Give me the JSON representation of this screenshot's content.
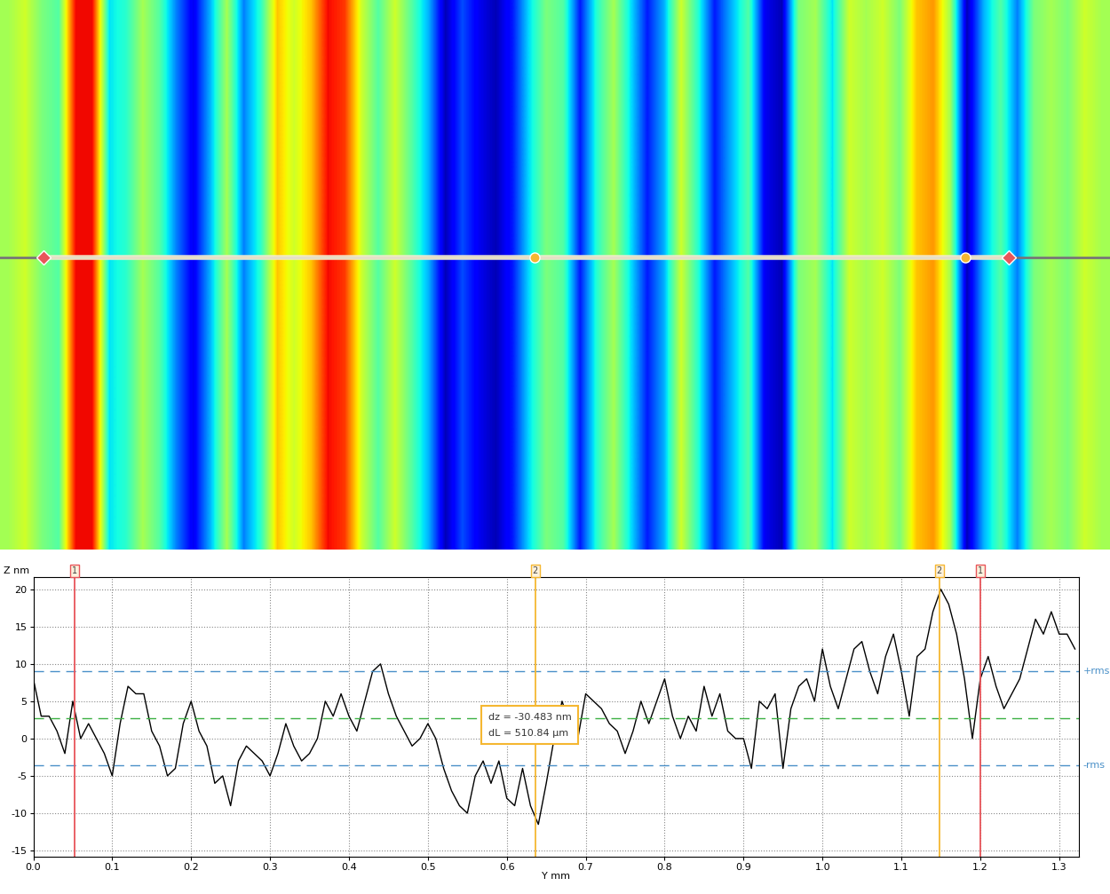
{
  "heightmap": {
    "type": "heatmap",
    "tick_labels": false,
    "xlim": [
      0,
      1.32
    ],
    "ylim": [
      0,
      0.655
    ],
    "zlim": [
      0,
      1
    ],
    "values": [
      0.55,
      0.6,
      0.5,
      0.45,
      0.9,
      0.9,
      0.35,
      0.4,
      0.55,
      0.45,
      0.25,
      0.1,
      0.3,
      0.55,
      0.25,
      0.4,
      0.7,
      0.6,
      0.7,
      0.9,
      0.85,
      0.6,
      0.45,
      0.6,
      0.45,
      0.3,
      0.05,
      0.2,
      0.1,
      0.05,
      0.15,
      0.35,
      0.5,
      0.45,
      0.15,
      0.4,
      0.55,
      0.35,
      0.15,
      0.3,
      0.6,
      0.4,
      0.15,
      0.3,
      0.45,
      0.1,
      0.05,
      0.5,
      0.55,
      0.35,
      0.6,
      0.55,
      0.6,
      0.5,
      0.7,
      0.75,
      0.55,
      0.05,
      0.3,
      0.45,
      0.25,
      0.5,
      0.55,
      0.5,
      0.6,
      0.55
    ],
    "profile_y": 0.348
  },
  "chart_data": {
    "type": "line",
    "x_label": "Y mm",
    "y_label": "Z nm",
    "grid": true,
    "color": "#000000",
    "x": [
      0.0,
      0.01,
      0.02,
      0.03,
      0.04,
      0.05,
      0.06,
      0.07,
      0.08,
      0.09,
      0.1,
      0.11,
      0.12,
      0.13,
      0.14,
      0.15,
      0.16,
      0.17,
      0.18,
      0.19,
      0.2,
      0.21,
      0.22,
      0.23,
      0.24,
      0.25,
      0.26,
      0.27,
      0.28,
      0.29,
      0.3,
      0.31,
      0.32,
      0.33,
      0.34,
      0.35,
      0.36,
      0.37,
      0.38,
      0.39,
      0.4,
      0.41,
      0.42,
      0.43,
      0.44,
      0.45,
      0.46,
      0.47,
      0.48,
      0.49,
      0.5,
      0.51,
      0.52,
      0.53,
      0.54,
      0.55,
      0.56,
      0.57,
      0.58,
      0.59,
      0.6,
      0.61,
      0.62,
      0.63,
      0.64,
      0.65,
      0.66,
      0.67,
      0.68,
      0.69,
      0.7,
      0.71,
      0.72,
      0.73,
      0.74,
      0.75,
      0.76,
      0.77,
      0.78,
      0.79,
      0.8,
      0.81,
      0.82,
      0.83,
      0.84,
      0.85,
      0.86,
      0.87,
      0.88,
      0.89,
      0.9,
      0.91,
      0.92,
      0.93,
      0.94,
      0.95,
      0.96,
      0.97,
      0.98,
      0.99,
      1.0,
      1.01,
      1.02,
      1.03,
      1.04,
      1.05,
      1.06,
      1.07,
      1.08,
      1.09,
      1.1,
      1.11,
      1.12,
      1.13,
      1.14,
      1.15,
      1.16,
      1.17,
      1.18,
      1.19,
      1.2,
      1.21,
      1.22,
      1.23,
      1.24,
      1.25,
      1.26,
      1.27,
      1.28,
      1.29,
      1.3,
      1.31,
      1.32
    ],
    "values": [
      8,
      3,
      3,
      1,
      -2,
      5,
      0,
      2,
      0,
      -2,
      -5,
      2,
      7,
      6,
      6,
      1,
      -1,
      -5,
      -4,
      2,
      5,
      1,
      -1,
      -6,
      -5,
      -9,
      -3,
      -1,
      -2,
      -3,
      -5,
      -2,
      2,
      -1,
      -3,
      -2,
      0,
      5,
      3,
      6,
      3,
      1,
      5,
      9,
      10,
      6,
      3,
      1,
      -1,
      0,
      2,
      0,
      -4,
      -7,
      -9,
      -10,
      -5,
      -3,
      -6,
      -3,
      -8,
      -9,
      -4,
      -9,
      -11.5,
      -6,
      0,
      5,
      2,
      0,
      6,
      5,
      4,
      2,
      1,
      -2,
      1,
      5,
      2,
      5,
      8,
      3,
      0,
      3,
      1,
      7,
      3,
      6,
      1,
      0,
      0,
      -4,
      5,
      4,
      6,
      -4,
      4,
      7,
      8,
      5,
      12,
      7,
      4,
      8,
      12,
      13,
      9,
      6,
      11,
      14,
      9,
      3,
      11,
      12,
      17,
      20,
      18,
      14,
      8,
      0,
      8,
      11,
      7,
      4,
      6,
      8,
      12,
      16,
      14,
      17,
      14,
      14,
      12
    ],
    "xlim": [
      0,
      1.325
    ],
    "ylim": [
      -15.8,
      21.7
    ],
    "xticks": [
      {
        "value": 0,
        "label": "0.0"
      },
      0.1,
      0.2,
      0.3,
      0.4,
      0.5,
      0.6,
      0.7,
      0.8,
      0.9,
      {
        "value": 1,
        "label": "1.0"
      },
      1.1,
      1.2,
      1.3
    ],
    "yticks": [
      -15,
      -10,
      -5,
      0,
      5,
      10,
      15,
      20
    ],
    "cursors": [
      {
        "label": "1",
        "x": 0.052,
        "color": "#e8555a"
      },
      {
        "label": "2",
        "x": 0.636,
        "color": "#f5b731"
      },
      {
        "label": "2",
        "x": 1.148,
        "color": "#f5b731"
      },
      {
        "label": "1",
        "x": 1.2,
        "color": "#e8555a"
      }
    ],
    "rms_lines": [
      {
        "label": "+rms",
        "value": 9.0,
        "color": "#4a90c8"
      },
      {
        "label": "-rms",
        "value": -3.6,
        "color": "#4a90c8"
      }
    ],
    "mean_line": {
      "value": 2.7,
      "color": "#3cb043"
    },
    "annotation": [
      "dz = -30.483 nm",
      "dL = 510.84 µm"
    ]
  }
}
